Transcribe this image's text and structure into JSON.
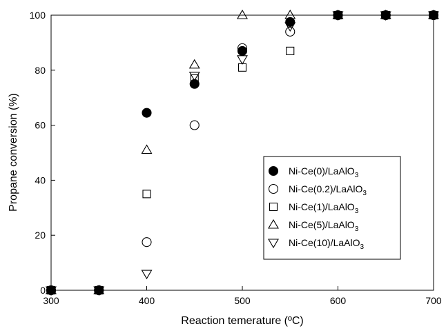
{
  "chart_data": {
    "type": "scatter",
    "xlabel": "Reaction temerature (ºC)",
    "ylabel": "Propane conversion (%)",
    "xlim": [
      300,
      700
    ],
    "ylim": [
      0,
      100
    ],
    "xticks": [
      "300",
      "400",
      "500",
      "600",
      "700"
    ],
    "yticks": [
      "0",
      "20",
      "40",
      "60",
      "80",
      "100"
    ],
    "grid": false,
    "legend_position": "center-right",
    "series": [
      {
        "name": "Ni-Ce(0)/LaAlO",
        "subscript": "3",
        "marker": "filled-circle",
        "x": [
          300,
          350,
          400,
          450,
          500,
          550,
          600,
          650,
          700
        ],
        "y": [
          0,
          0,
          64.5,
          75,
          87,
          97.5,
          100,
          100,
          100
        ]
      },
      {
        "name": "Ni-Ce(0.2)/LaAlO",
        "subscript": "3",
        "marker": "open-circle",
        "x": [
          300,
          350,
          400,
          450,
          500,
          550,
          600,
          650,
          700
        ],
        "y": [
          0,
          0,
          17.5,
          60,
          88,
          94,
          100,
          100,
          100
        ]
      },
      {
        "name": "Ni-Ce(1)/LaAlO",
        "subscript": "3",
        "marker": "open-square",
        "x": [
          300,
          350,
          400,
          450,
          500,
          550,
          600,
          650,
          700
        ],
        "y": [
          0,
          0,
          35,
          77,
          81,
          87,
          100,
          100,
          100
        ]
      },
      {
        "name": "Ni-Ce(5)/LaAlO",
        "subscript": "3",
        "marker": "open-triangle-up",
        "x": [
          300,
          350,
          400,
          450,
          500,
          550,
          600,
          650,
          700
        ],
        "y": [
          0,
          0,
          51,
          82,
          100,
          100,
          100,
          100,
          100
        ]
      },
      {
        "name": "Ni-Ce(10)/LaAlO",
        "subscript": "3",
        "marker": "open-triangle-down",
        "x": [
          300,
          350,
          400,
          450,
          500,
          550,
          600,
          650,
          700
        ],
        "y": [
          0,
          0,
          6,
          78,
          84,
          96,
          100,
          100,
          100
        ]
      }
    ]
  }
}
